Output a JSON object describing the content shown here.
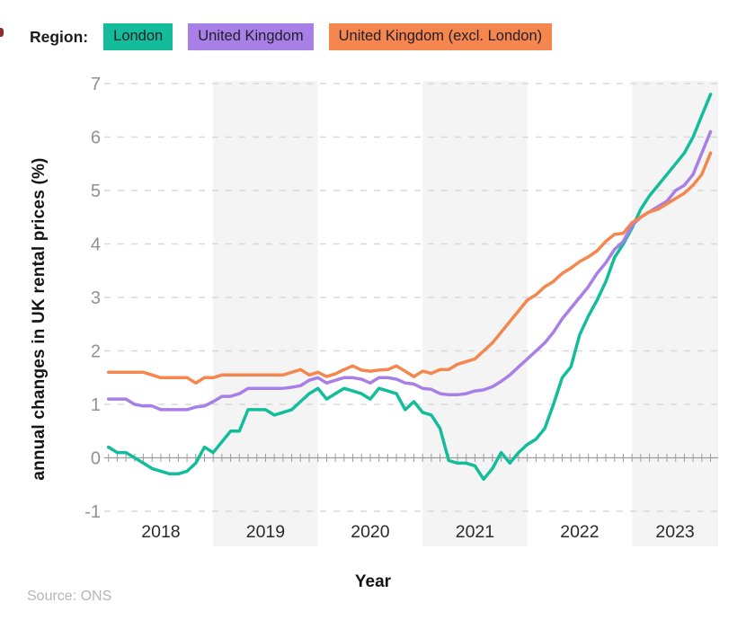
{
  "legend": {
    "label": "Region:",
    "items": [
      {
        "label": "London",
        "color": "#13bd9c"
      },
      {
        "label": "United Kingdom",
        "color": "#a77fe6"
      },
      {
        "label": "United Kingdom (excl. London)",
        "color": "#f4864e"
      }
    ]
  },
  "y_axis": {
    "title": "annual changes in UK rental prices (%)",
    "ticks": [
      7,
      6,
      5,
      4,
      3,
      2,
      1,
      0,
      -1
    ]
  },
  "x_axis": {
    "title": "Year",
    "year_labels": [
      "2018",
      "2019",
      "2020",
      "2021",
      "2022",
      "2023"
    ]
  },
  "source": "Source: ONS",
  "colors": {
    "grid": "#d8d8d8",
    "axis": "#9b9b9b",
    "band": "#f4f4f4",
    "tick_label": "#919191",
    "year_label": "#2b2b2b"
  },
  "chart_data": {
    "type": "line",
    "x_unit": "month",
    "x_range": [
      "2018-01",
      "2023-10"
    ],
    "points_per_series": 70,
    "ylim": [
      -1,
      7
    ],
    "grid": "horizontal-dashed",
    "shaded_year_bands": [
      "2019",
      "2021",
      "2023"
    ],
    "legend_position": "top-left",
    "series": [
      {
        "name": "London",
        "color": "#13bd9c",
        "values": [
          0.2,
          0.1,
          0.1,
          0.0,
          -0.1,
          -0.2,
          -0.25,
          -0.3,
          -0.3,
          -0.25,
          -0.1,
          0.2,
          0.1,
          0.3,
          0.5,
          0.5,
          0.9,
          0.9,
          0.9,
          0.8,
          0.85,
          0.9,
          1.05,
          1.2,
          1.3,
          1.1,
          1.2,
          1.3,
          1.25,
          1.2,
          1.1,
          1.3,
          1.25,
          1.2,
          0.9,
          1.05,
          0.85,
          0.8,
          0.55,
          -0.05,
          -0.1,
          -0.1,
          -0.15,
          -0.4,
          -0.2,
          0.1,
          -0.1,
          0.1,
          0.25,
          0.35,
          0.55,
          1.0,
          1.5,
          1.7,
          2.3,
          2.65,
          2.95,
          3.3,
          3.75,
          4.0,
          4.3,
          4.65,
          4.9,
          5.1,
          5.3,
          5.5,
          5.7,
          6.0,
          6.4,
          6.8
        ]
      },
      {
        "name": "United Kingdom",
        "color": "#a77fe6",
        "values": [
          1.1,
          1.1,
          1.1,
          1.0,
          0.97,
          0.97,
          0.9,
          0.9,
          0.9,
          0.9,
          0.95,
          0.97,
          1.05,
          1.15,
          1.15,
          1.2,
          1.3,
          1.3,
          1.3,
          1.3,
          1.3,
          1.32,
          1.35,
          1.45,
          1.5,
          1.4,
          1.45,
          1.5,
          1.5,
          1.47,
          1.4,
          1.5,
          1.5,
          1.47,
          1.4,
          1.38,
          1.3,
          1.28,
          1.2,
          1.18,
          1.18,
          1.2,
          1.25,
          1.27,
          1.33,
          1.43,
          1.55,
          1.7,
          1.85,
          2.0,
          2.15,
          2.35,
          2.6,
          2.8,
          3.0,
          3.2,
          3.45,
          3.65,
          3.9,
          4.05,
          4.35,
          4.5,
          4.6,
          4.7,
          4.8,
          5.0,
          5.1,
          5.3,
          5.7,
          6.1
        ]
      },
      {
        "name": "United Kingdom (excl. London)",
        "color": "#f4864e",
        "values": [
          1.6,
          1.6,
          1.6,
          1.6,
          1.6,
          1.55,
          1.5,
          1.5,
          1.5,
          1.5,
          1.4,
          1.5,
          1.5,
          1.55,
          1.55,
          1.55,
          1.55,
          1.55,
          1.55,
          1.55,
          1.55,
          1.6,
          1.65,
          1.55,
          1.6,
          1.52,
          1.57,
          1.65,
          1.72,
          1.64,
          1.62,
          1.64,
          1.65,
          1.72,
          1.62,
          1.52,
          1.62,
          1.58,
          1.65,
          1.65,
          1.75,
          1.8,
          1.85,
          2.0,
          2.15,
          2.35,
          2.55,
          2.75,
          2.95,
          3.05,
          3.2,
          3.3,
          3.45,
          3.55,
          3.67,
          3.76,
          3.87,
          4.05,
          4.18,
          4.2,
          4.4,
          4.5,
          4.6,
          4.65,
          4.75,
          4.85,
          4.95,
          5.1,
          5.3,
          5.7
        ]
      }
    ]
  }
}
